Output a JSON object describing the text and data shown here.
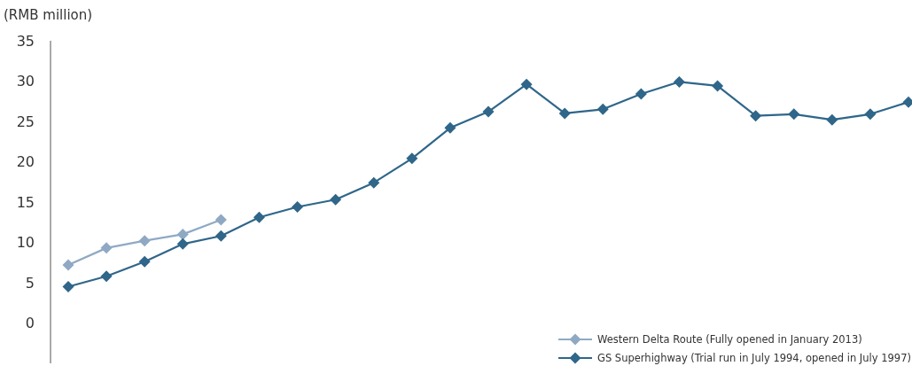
{
  "chart_data": {
    "type": "line",
    "ylabel": "(RMB million)",
    "categories": [
      null,
      null,
      null,
      null,
      null,
      null,
      null,
      null,
      null,
      null,
      null,
      null,
      null,
      null,
      null,
      null,
      null,
      null,
      null,
      null,
      null,
      null,
      null
    ],
    "series": [
      {
        "name": "Western Delta Route (Fully opened in January 2013)",
        "color": "#8fa9c4",
        "values": [
          7.2,
          9.3,
          10.2,
          11.0,
          12.8,
          null,
          null,
          null,
          null,
          null,
          null,
          null,
          null,
          null,
          null,
          null,
          null,
          null,
          null,
          null,
          null,
          null,
          null
        ]
      },
      {
        "name": "GS Superhighway (Trial run in July 1994, opened in July 1997)",
        "color": "#2f6689",
        "values": [
          4.5,
          5.8,
          7.6,
          9.8,
          10.8,
          13.1,
          14.4,
          15.3,
          17.4,
          20.4,
          24.2,
          26.2,
          29.6,
          26.0,
          26.5,
          28.4,
          29.9,
          29.4,
          25.7,
          25.9,
          25.2,
          25.9,
          27.4
        ]
      }
    ],
    "ylim": [
      -5,
      35
    ],
    "yticks": [
      0,
      5,
      10,
      15,
      20,
      25,
      30,
      35
    ],
    "grid": false,
    "legend": "bottom right",
    "marker": "diamond",
    "line_style": "solid",
    "tick_labels": "y"
  }
}
